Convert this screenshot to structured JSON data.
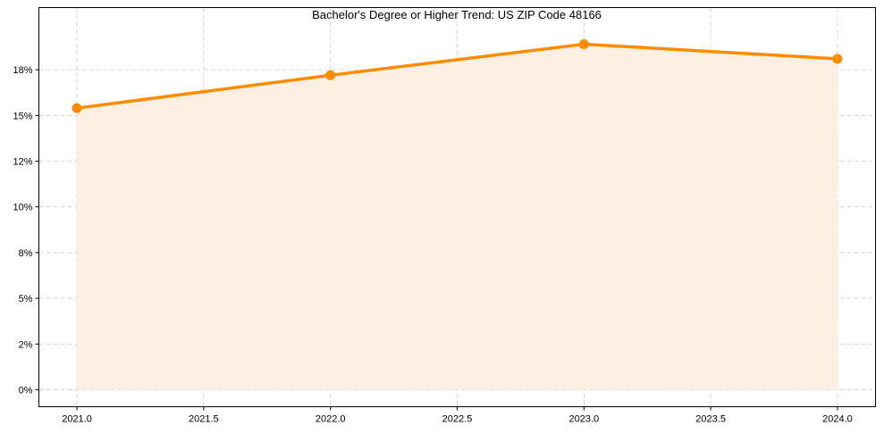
{
  "chart_data": {
    "type": "line",
    "title": "Bachelor's Degree or Higher Trend: US ZIP Code 48166",
    "xlabel": "",
    "ylabel": "",
    "x": [
      2021,
      2022,
      2023,
      2024
    ],
    "series": [
      {
        "name": "Bachelor's Degree or Higher",
        "values": [
          15.4,
          17.2,
          18.9,
          18.1
        ],
        "color": "#ff8c00",
        "fill_color": "#fdf0e2"
      }
    ],
    "xlim": [
      2020.85,
      2024.15
    ],
    "ylim": [
      -0.93,
      20.9
    ],
    "xticks": [
      2021.0,
      2021.5,
      2022.0,
      2022.5,
      2023.0,
      2023.5,
      2024.0
    ],
    "xtick_labels": [
      "2021.0",
      "2021.5",
      "2022.0",
      "2022.5",
      "2023.0",
      "2023.5",
      "2024.0"
    ],
    "yticks": [
      0,
      2.5,
      5,
      7.5,
      10,
      12.5,
      15,
      17.5
    ],
    "ytick_labels": [
      "0%",
      "2%",
      "5%",
      "8%",
      "10%",
      "12%",
      "15%",
      "18%"
    ],
    "grid": true,
    "legend": "none"
  }
}
